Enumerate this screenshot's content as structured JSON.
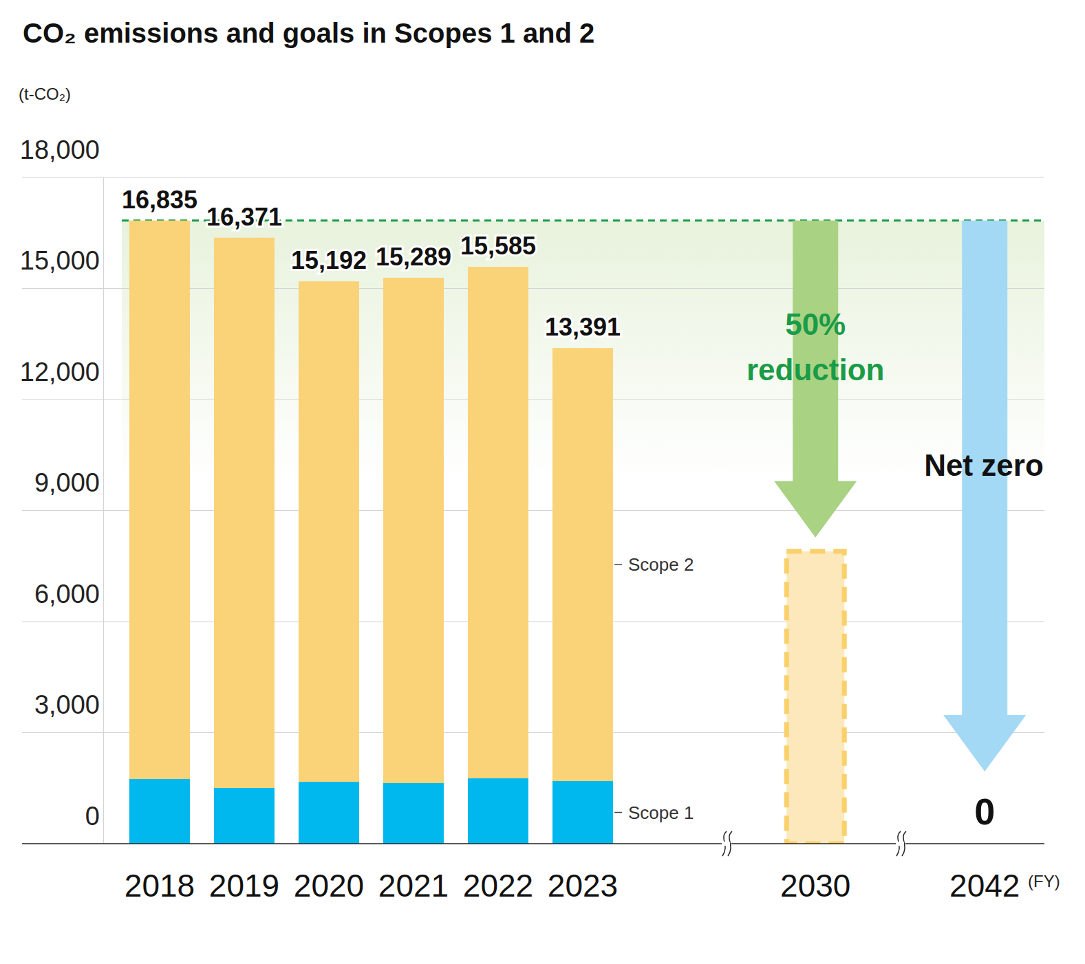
{
  "chart_data": {
    "type": "bar",
    "title": "CO₂ emissions and goals in Scopes 1 and 2",
    "ylabel": "(t-CO₂)",
    "xlabel": "(FY)",
    "categories": [
      "2018",
      "2019",
      "2020",
      "2021",
      "2022",
      "2023",
      "2030",
      "2042"
    ],
    "stacked": true,
    "grid": true,
    "ylim": [
      0,
      18000
    ],
    "yticks": [
      0,
      {
        "value": 3000,
        "label": "3,000"
      },
      {
        "value": 6000,
        "label": "6,000"
      },
      {
        "value": 9000,
        "label": "9,000"
      },
      {
        "value": 12000,
        "label": "12,000"
      },
      {
        "value": 15000,
        "label": "15,000"
      },
      {
        "value": 18000,
        "label": "18,000"
      }
    ],
    "series": [
      {
        "name": "Scope 1",
        "color": "#00b8ee",
        "values": [
          1746,
          1505,
          1672,
          1635,
          1765,
          1690,
          null,
          null
        ]
      },
      {
        "name": "Scope 2",
        "color": "#fad378",
        "values": [
          15089,
          14866,
          13520,
          13654,
          13820,
          11701,
          null,
          null
        ]
      },
      {
        "color": "#fde8bc",
        "line_style": "dashed",
        "values": [
          null,
          null,
          null,
          null,
          null,
          null,
          7900,
          0
        ],
        "value_labels": [
          null,
          null,
          null,
          null,
          null,
          null,
          null,
          "0"
        ]
      }
    ],
    "totals": [
      16835,
      16371,
      15192,
      15289,
      15585,
      13391
    ],
    "total_labels": [
      "16,835",
      "16,371",
      "15,192",
      "15,289",
      "15,585",
      "13,391"
    ],
    "annotations": [
      {
        "text": "50%"
      },
      {
        "text": "reduction"
      },
      {
        "text": "Net zero"
      }
    ]
  }
}
